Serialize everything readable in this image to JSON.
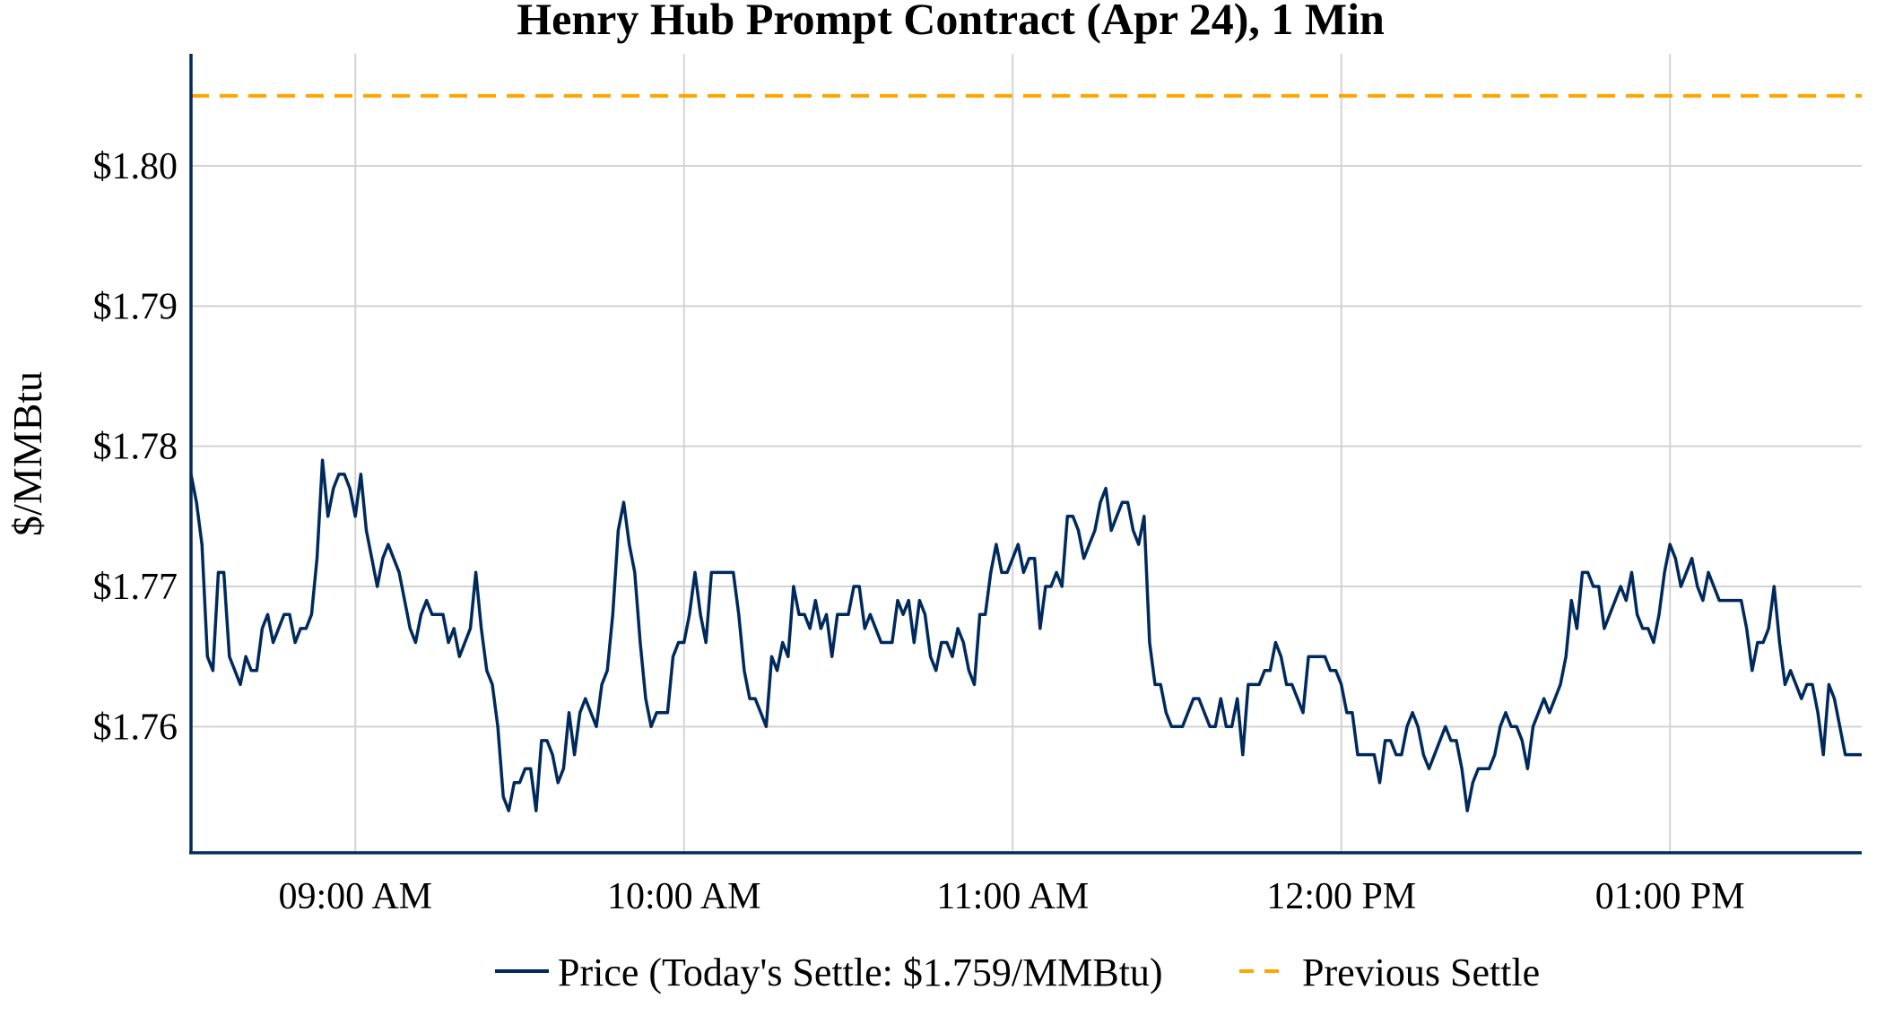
{
  "chart_data": {
    "type": "line",
    "title": "Henry Hub Prompt Contract (Apr 24), 1 Min",
    "xlabel": "",
    "ylabel": "$/MMBtu",
    "ylim": [
      1.751,
      1.808
    ],
    "xlim": [
      "08:30",
      "13:35"
    ],
    "y_ticks": [
      1.76,
      1.77,
      1.78,
      1.79,
      1.8
    ],
    "y_tick_labels": [
      "$1.76",
      "$1.77",
      "$1.78",
      "$1.79",
      "$1.80"
    ],
    "x_ticks": [
      "09:00",
      "10:00",
      "11:00",
      "12:00",
      "13:00"
    ],
    "x_tick_labels": [
      "09:00 AM",
      "10:00 AM",
      "11:00 AM",
      "12:00 PM",
      "01:00 PM"
    ],
    "grid": true,
    "legend_position": "bottom",
    "series": [
      {
        "name": "Price (Today's Settle: $1.759/MMBtu)",
        "color": "#002a5c",
        "style": "solid",
        "x": [
          "08:30",
          "08:31",
          "08:32",
          "08:33",
          "08:34",
          "08:35",
          "08:36",
          "08:37",
          "08:38",
          "08:39",
          "08:40",
          "08:41",
          "08:42",
          "08:43",
          "08:44",
          "08:45",
          "08:46",
          "08:47",
          "08:48",
          "08:49",
          "08:50",
          "08:51",
          "08:52",
          "08:53",
          "08:54",
          "08:55",
          "08:56",
          "08:57",
          "08:58",
          "08:59",
          "09:00",
          "09:01",
          "09:02",
          "09:03",
          "09:04",
          "09:05",
          "09:06",
          "09:07",
          "09:08",
          "09:09",
          "09:10",
          "09:11",
          "09:12",
          "09:13",
          "09:14",
          "09:15",
          "09:16",
          "09:17",
          "09:18",
          "09:19",
          "09:20",
          "09:21",
          "09:22",
          "09:23",
          "09:24",
          "09:25",
          "09:26",
          "09:27",
          "09:28",
          "09:29",
          "09:30",
          "09:31",
          "09:32",
          "09:33",
          "09:34",
          "09:35",
          "09:36",
          "09:37",
          "09:38",
          "09:39",
          "09:40",
          "09:41",
          "09:42",
          "09:43",
          "09:44",
          "09:45",
          "09:46",
          "09:47",
          "09:48",
          "09:49",
          "09:50",
          "09:51",
          "09:52",
          "09:53",
          "09:54",
          "09:55",
          "09:56",
          "09:57",
          "09:58",
          "09:59",
          "10:00",
          "10:01",
          "10:02",
          "10:03",
          "10:04",
          "10:05",
          "10:06",
          "10:07",
          "10:08",
          "10:09",
          "10:10",
          "10:11",
          "10:12",
          "10:13",
          "10:14",
          "10:15",
          "10:16",
          "10:17",
          "10:18",
          "10:19",
          "10:20",
          "10:21",
          "10:22",
          "10:23",
          "10:24",
          "10:25",
          "10:26",
          "10:27",
          "10:28",
          "10:29",
          "10:30",
          "10:31",
          "10:32",
          "10:33",
          "10:34",
          "10:35",
          "10:36",
          "10:37",
          "10:38",
          "10:39",
          "10:40",
          "10:41",
          "10:42",
          "10:43",
          "10:44",
          "10:45",
          "10:46",
          "10:47",
          "10:48",
          "10:49",
          "10:50",
          "10:51",
          "10:52",
          "10:53",
          "10:54",
          "10:55",
          "10:56",
          "10:57",
          "10:58",
          "10:59",
          "11:00",
          "11:01",
          "11:02",
          "11:03",
          "11:04",
          "11:05",
          "11:06",
          "11:07",
          "11:08",
          "11:09",
          "11:10",
          "11:11",
          "11:12",
          "11:13",
          "11:14",
          "11:15",
          "11:16",
          "11:17",
          "11:18",
          "11:19",
          "11:20",
          "11:21",
          "11:22",
          "11:23",
          "11:24",
          "11:25",
          "11:26",
          "11:27",
          "11:28",
          "11:29",
          "11:30",
          "11:31",
          "11:32",
          "11:33",
          "11:34",
          "11:35",
          "11:36",
          "11:37",
          "11:38",
          "11:39",
          "11:40",
          "11:41",
          "11:42",
          "11:43",
          "11:44",
          "11:45",
          "11:46",
          "11:47",
          "11:48",
          "11:49",
          "11:50",
          "11:51",
          "11:52",
          "11:53",
          "11:54",
          "11:55",
          "11:56",
          "11:57",
          "11:58",
          "11:59",
          "12:00",
          "12:01",
          "12:02",
          "12:03",
          "12:04",
          "12:05",
          "12:06",
          "12:07",
          "12:08",
          "12:09",
          "12:10",
          "12:11",
          "12:12",
          "12:13",
          "12:14",
          "12:15",
          "12:16",
          "12:17",
          "12:18",
          "12:19",
          "12:20",
          "12:21",
          "12:22",
          "12:23",
          "12:24",
          "12:25",
          "12:26",
          "12:27",
          "12:28",
          "12:29",
          "12:30",
          "12:31",
          "12:32",
          "12:33",
          "12:34",
          "12:35",
          "12:36",
          "12:37",
          "12:38",
          "12:39",
          "12:40",
          "12:41",
          "12:42",
          "12:43",
          "12:44",
          "12:45",
          "12:46",
          "12:47",
          "12:48",
          "12:49",
          "12:50",
          "12:51",
          "12:52",
          "12:53",
          "12:54",
          "12:55",
          "12:56",
          "12:57",
          "12:58",
          "12:59",
          "13:00",
          "13:01",
          "13:02",
          "13:03",
          "13:04",
          "13:05",
          "13:06",
          "13:07",
          "13:08",
          "13:09",
          "13:10",
          "13:11",
          "13:12",
          "13:13",
          "13:14",
          "13:15",
          "13:16",
          "13:17",
          "13:18",
          "13:19",
          "13:20",
          "13:21",
          "13:22",
          "13:23",
          "13:24",
          "13:25",
          "13:26",
          "13:27",
          "13:28",
          "13:29",
          "13:30",
          "13:31",
          "13:32",
          "13:33",
          "13:34",
          "13:35"
        ],
        "y": [
          1.778,
          1.776,
          1.773,
          1.765,
          1.764,
          1.771,
          1.771,
          1.765,
          1.764,
          1.763,
          1.765,
          1.764,
          1.764,
          1.767,
          1.768,
          1.766,
          1.767,
          1.768,
          1.768,
          1.766,
          1.767,
          1.767,
          1.768,
          1.772,
          1.779,
          1.775,
          1.777,
          1.778,
          1.778,
          1.777,
          1.775,
          1.778,
          1.774,
          1.772,
          1.77,
          1.772,
          1.773,
          1.772,
          1.771,
          1.769,
          1.767,
          1.766,
          1.768,
          1.769,
          1.768,
          1.768,
          1.768,
          1.766,
          1.767,
          1.765,
          1.766,
          1.767,
          1.771,
          1.767,
          1.764,
          1.763,
          1.76,
          1.755,
          1.754,
          1.756,
          1.756,
          1.757,
          1.757,
          1.754,
          1.759,
          1.759,
          1.758,
          1.756,
          1.757,
          1.761,
          1.758,
          1.761,
          1.762,
          1.761,
          1.76,
          1.763,
          1.764,
          1.768,
          1.774,
          1.776,
          1.773,
          1.771,
          1.766,
          1.762,
          1.76,
          1.761,
          1.761,
          1.761,
          1.765,
          1.766,
          1.766,
          1.768,
          1.771,
          1.768,
          1.766,
          1.771,
          1.771,
          1.771,
          1.771,
          1.771,
          1.768,
          1.764,
          1.762,
          1.762,
          1.761,
          1.76,
          1.765,
          1.764,
          1.766,
          1.765,
          1.77,
          1.768,
          1.768,
          1.767,
          1.769,
          1.767,
          1.768,
          1.765,
          1.768,
          1.768,
          1.768,
          1.77,
          1.77,
          1.767,
          1.768,
          1.767,
          1.766,
          1.766,
          1.766,
          1.769,
          1.768,
          1.769,
          1.766,
          1.769,
          1.768,
          1.765,
          1.764,
          1.766,
          1.766,
          1.765,
          1.767,
          1.766,
          1.764,
          1.763,
          1.768,
          1.768,
          1.771,
          1.773,
          1.771,
          1.771,
          1.772,
          1.773,
          1.771,
          1.772,
          1.772,
          1.767,
          1.77,
          1.77,
          1.771,
          1.77,
          1.775,
          1.775,
          1.774,
          1.772,
          1.773,
          1.774,
          1.776,
          1.777,
          1.774,
          1.775,
          1.776,
          1.776,
          1.774,
          1.773,
          1.775,
          1.766,
          1.763,
          1.763,
          1.761,
          1.76,
          1.76,
          1.76,
          1.761,
          1.762,
          1.762,
          1.761,
          1.76,
          1.76,
          1.762,
          1.76,
          1.76,
          1.762,
          1.758,
          1.763,
          1.763,
          1.763,
          1.764,
          1.764,
          1.766,
          1.765,
          1.763,
          1.763,
          1.762,
          1.761,
          1.765,
          1.765,
          1.765,
          1.765,
          1.764,
          1.764,
          1.763,
          1.761,
          1.761,
          1.758,
          1.758,
          1.758,
          1.758,
          1.756,
          1.759,
          1.759,
          1.758,
          1.758,
          1.76,
          1.761,
          1.76,
          1.758,
          1.757,
          1.758,
          1.759,
          1.76,
          1.759,
          1.759,
          1.757,
          1.754,
          1.756,
          1.757,
          1.757,
          1.757,
          1.758,
          1.76,
          1.761,
          1.76,
          1.76,
          1.759,
          1.757,
          1.76,
          1.761,
          1.762,
          1.761,
          1.762,
          1.763,
          1.765,
          1.769,
          1.767,
          1.771,
          1.771,
          1.77,
          1.77,
          1.767,
          1.768,
          1.769,
          1.77,
          1.769,
          1.771,
          1.768,
          1.767,
          1.767,
          1.766,
          1.768,
          1.771,
          1.773,
          1.772,
          1.77,
          1.771,
          1.772,
          1.77,
          1.769,
          1.771,
          1.77,
          1.769,
          1.769,
          1.769,
          1.769,
          1.769,
          1.767,
          1.764,
          1.766,
          1.766,
          1.767,
          1.77,
          1.766,
          1.763,
          1.764,
          1.763,
          1.762,
          1.763,
          1.763,
          1.761,
          1.758,
          1.763,
          1.762,
          1.76,
          1.758,
          1.758,
          1.758,
          1.758
        ]
      },
      {
        "name": "Previous Settle",
        "color": "#ffa500",
        "style": "dashed",
        "value": 1.805
      }
    ]
  }
}
